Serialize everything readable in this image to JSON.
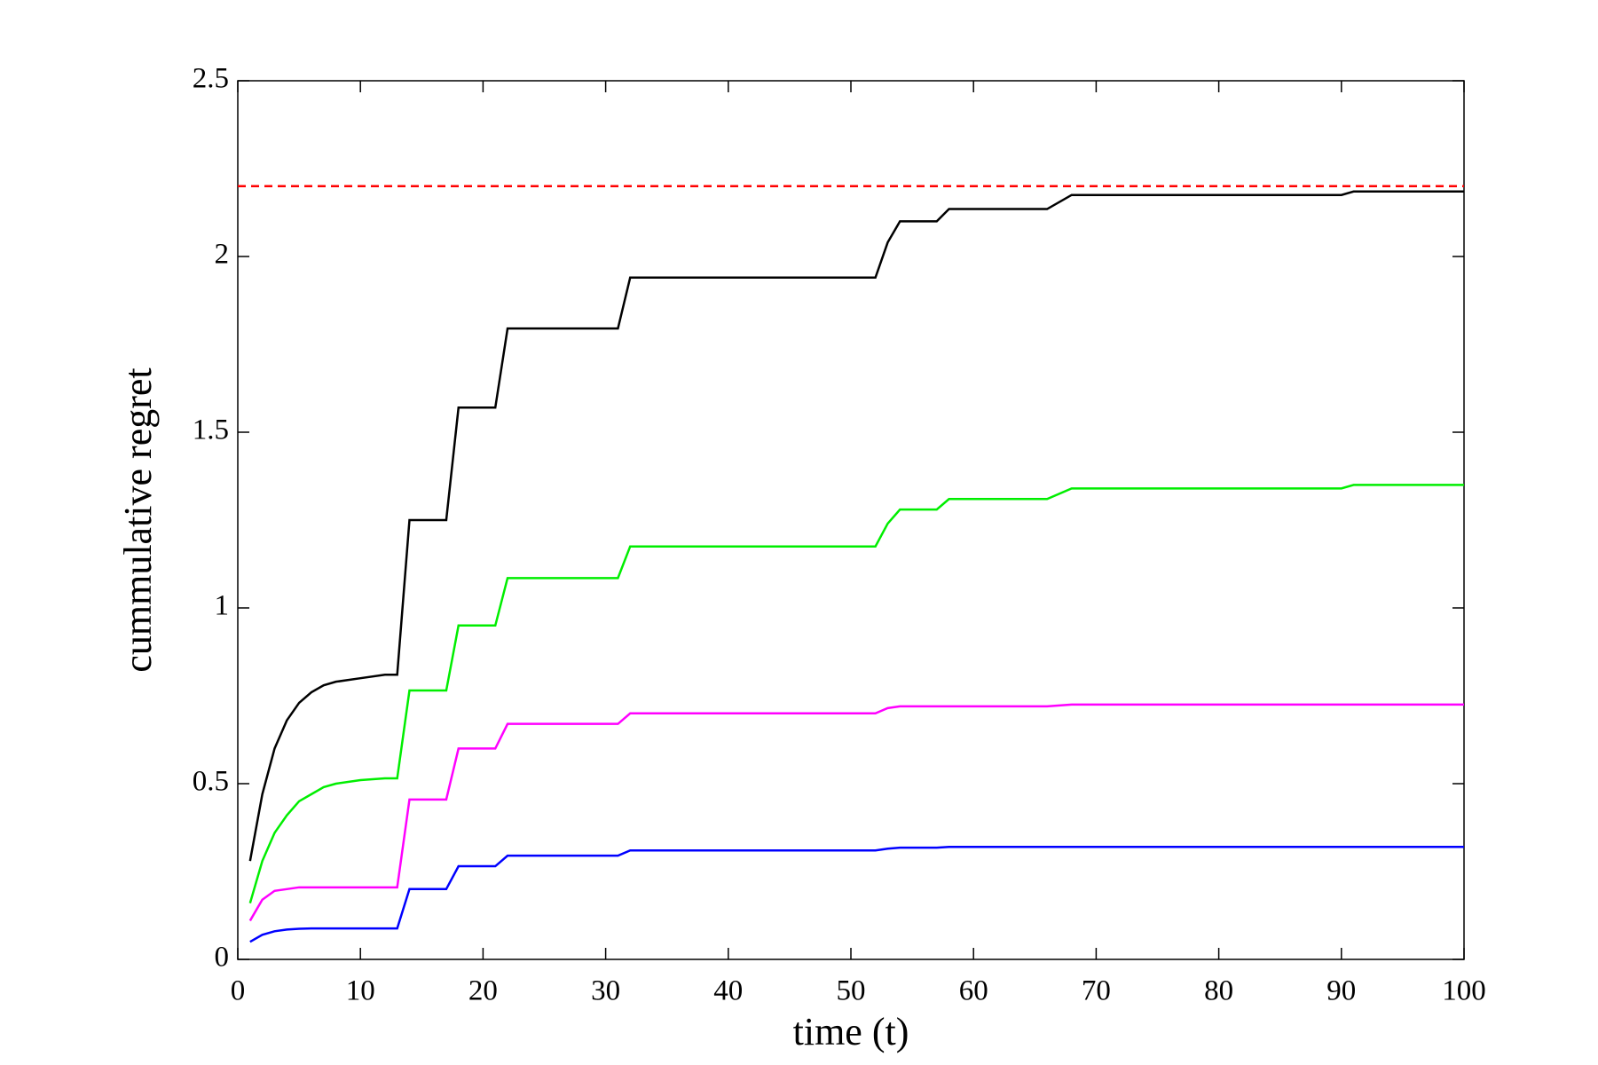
{
  "chart_data": {
    "type": "line",
    "xlabel": "time (t)",
    "ylabel": "cummulative regret",
    "x": [
      1,
      2,
      3,
      4,
      5,
      6,
      7,
      8,
      10,
      12,
      13,
      14,
      17,
      18,
      21,
      22,
      31,
      32,
      52,
      53,
      54,
      57,
      58,
      66,
      68,
      90,
      91,
      100
    ],
    "series": [
      {
        "color": "#000000",
        "values": [
          0.28,
          0.47,
          0.6,
          0.68,
          0.73,
          0.76,
          0.78,
          0.79,
          0.8,
          0.81,
          0.81,
          1.25,
          1.25,
          1.57,
          1.57,
          1.795,
          1.795,
          1.94,
          1.94,
          2.04,
          2.1,
          2.1,
          2.135,
          2.135,
          2.175,
          2.175,
          2.185,
          2.185
        ]
      },
      {
        "color": "#00ee00",
        "values": [
          0.16,
          0.28,
          0.36,
          0.41,
          0.45,
          0.47,
          0.49,
          0.5,
          0.51,
          0.515,
          0.515,
          0.765,
          0.765,
          0.95,
          0.95,
          1.085,
          1.085,
          1.175,
          1.175,
          1.24,
          1.28,
          1.28,
          1.31,
          1.31,
          1.34,
          1.34,
          1.35,
          1.35
        ]
      },
      {
        "color": "#ff00ff",
        "values": [
          0.11,
          0.17,
          0.195,
          0.2,
          0.205,
          0.205,
          0.205,
          0.205,
          0.205,
          0.205,
          0.205,
          0.455,
          0.455,
          0.6,
          0.6,
          0.67,
          0.67,
          0.7,
          0.7,
          0.715,
          0.72,
          0.72,
          0.72,
          0.72,
          0.725,
          0.725,
          0.725,
          0.725
        ]
      },
      {
        "color": "#0000ff",
        "values": [
          0.05,
          0.07,
          0.08,
          0.085,
          0.087,
          0.088,
          0.088,
          0.088,
          0.088,
          0.088,
          0.088,
          0.2,
          0.2,
          0.265,
          0.265,
          0.295,
          0.295,
          0.31,
          0.31,
          0.315,
          0.318,
          0.318,
          0.32,
          0.32,
          0.32,
          0.32,
          0.32,
          0.32
        ]
      },
      {
        "color": "#ff0000",
        "dashed": true,
        "x": [
          0,
          100
        ],
        "values": [
          2.2,
          2.2
        ]
      }
    ],
    "xlim": [
      0,
      100
    ],
    "xticks": [
      0,
      10,
      20,
      30,
      40,
      50,
      60,
      70,
      80,
      90,
      100
    ],
    "ylim": [
      0,
      2.5
    ],
    "yticks": [
      0,
      0.5,
      1,
      1.5,
      2,
      2.5
    ],
    "grid": false
  }
}
